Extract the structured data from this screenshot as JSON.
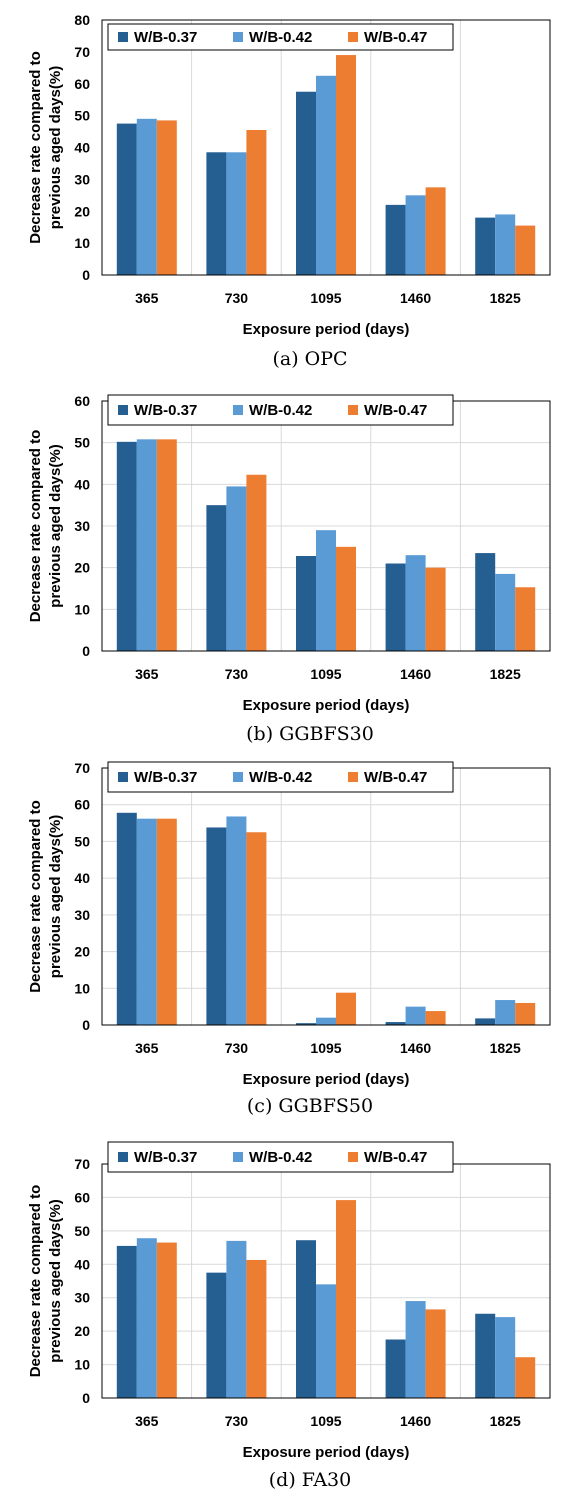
{
  "colors": {
    "W/B-0.37": "#255e91",
    "W/B-0.42": "#5b9bd5",
    "W/B-0.47": "#ed7d31",
    "grid": "#d9d9d9",
    "frame": "#000000"
  },
  "chart_data": [
    {
      "type": "bar",
      "caption": "(a) OPC",
      "xlabel": "Exposure period (days)",
      "ylabel": "Decrease rate compared to previous aged days(%)",
      "categories": [
        "365",
        "730",
        "1095",
        "1460",
        "1825"
      ],
      "ylim": [
        0,
        80
      ],
      "yticks": [
        0,
        10,
        20,
        30,
        40,
        50,
        60,
        70,
        80
      ],
      "grid": "vertical",
      "legend": "top",
      "series": [
        {
          "name": "W/B-0.37",
          "values": [
            47.5,
            38.5,
            57.5,
            22,
            18
          ]
        },
        {
          "name": "W/B-0.42",
          "values": [
            49,
            38.5,
            62.5,
            25,
            19
          ]
        },
        {
          "name": "W/B-0.47",
          "values": [
            48.5,
            45.5,
            69,
            27.5,
            15.5
          ]
        }
      ]
    },
    {
      "type": "bar",
      "caption": "(b) GGBFS30",
      "xlabel": "Exposure period (days)",
      "ylabel": "Decrease rate compared to previous aged days(%)",
      "categories": [
        "365",
        "730",
        "1095",
        "1460",
        "1825"
      ],
      "ylim": [
        0,
        60
      ],
      "yticks": [
        0,
        10,
        20,
        30,
        40,
        50,
        60
      ],
      "grid": "both",
      "legend": "top",
      "series": [
        {
          "name": "W/B-0.37",
          "values": [
            50.2,
            35,
            22.8,
            21,
            23.5
          ]
        },
        {
          "name": "W/B-0.42",
          "values": [
            50.8,
            39.5,
            29,
            23,
            18.5
          ]
        },
        {
          "name": "W/B-0.47",
          "values": [
            50.8,
            42.3,
            25,
            20,
            15.3
          ]
        }
      ]
    },
    {
      "type": "bar",
      "caption": "(c) GGBFS50",
      "xlabel": "Exposure period (days)",
      "ylabel": "Decrease rate compared to previous aged days(%)",
      "categories": [
        "365",
        "730",
        "1095",
        "1460",
        "1825"
      ],
      "ylim": [
        0,
        70
      ],
      "yticks": [
        0,
        10,
        20,
        30,
        40,
        50,
        60,
        70
      ],
      "grid": "both",
      "legend": "top",
      "series": [
        {
          "name": "W/B-0.37",
          "values": [
            57.8,
            53.8,
            0.5,
            0.8,
            1.8
          ]
        },
        {
          "name": "W/B-0.42",
          "values": [
            56.2,
            56.8,
            2,
            5,
            6.8
          ]
        },
        {
          "name": "W/B-0.47",
          "values": [
            56.2,
            52.5,
            8.8,
            3.8,
            6
          ]
        }
      ]
    },
    {
      "type": "bar",
      "caption": "(d) FA30",
      "xlabel": "Exposure period (days)",
      "ylabel": "Decrease rate compared to previous aged days(%)",
      "categories": [
        "365",
        "730",
        "1095",
        "1460",
        "1825"
      ],
      "ylim": [
        0,
        70
      ],
      "yticks": [
        0,
        10,
        20,
        30,
        40,
        50,
        60,
        70
      ],
      "grid": "both",
      "legend": "top",
      "series": [
        {
          "name": "W/B-0.37",
          "values": [
            45.5,
            37.5,
            47.2,
            17.5,
            25.2
          ]
        },
        {
          "name": "W/B-0.42",
          "values": [
            47.8,
            47,
            34,
            29,
            24.2
          ]
        },
        {
          "name": "W/B-0.47",
          "values": [
            46.5,
            41.3,
            59.2,
            26.5,
            12.2
          ]
        }
      ]
    }
  ]
}
